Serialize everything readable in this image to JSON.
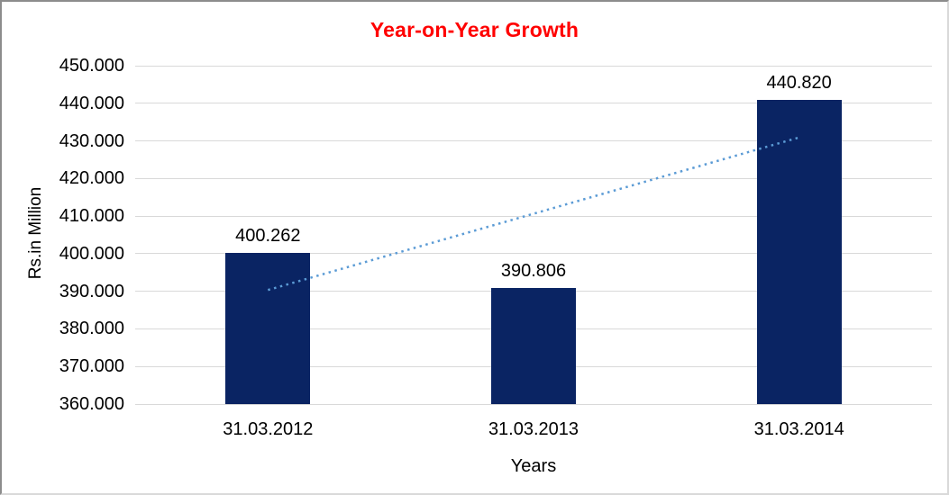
{
  "chart_data": {
    "type": "bar",
    "title": "Year-on-Year Growth",
    "xlabel": "Years",
    "ylabel": "Rs.in Million",
    "categories": [
      "31.03.2012",
      "31.03.2013",
      "31.03.2014"
    ],
    "values": [
      400.262,
      390.806,
      440.82
    ],
    "data_labels": [
      "400.262",
      "390.806",
      "440.820"
    ],
    "ylim": [
      360,
      450
    ],
    "ytick_step": 10,
    "ytick_labels": [
      "360.000",
      "370.000",
      "380.000",
      "390.000",
      "400.000",
      "410.000",
      "420.000",
      "430.000",
      "440.000",
      "450.000"
    ],
    "grid": "horizontal",
    "legend": "none",
    "trendline": {
      "type": "linear",
      "style": "dotted",
      "spans": [
        "31.03.2012",
        "31.03.2014"
      ]
    },
    "colors": {
      "bar": "#0a2463",
      "title": "#ff0000",
      "gridline": "#d9d9d9",
      "trendline": "#5b9bd5",
      "text": "#000000"
    }
  }
}
